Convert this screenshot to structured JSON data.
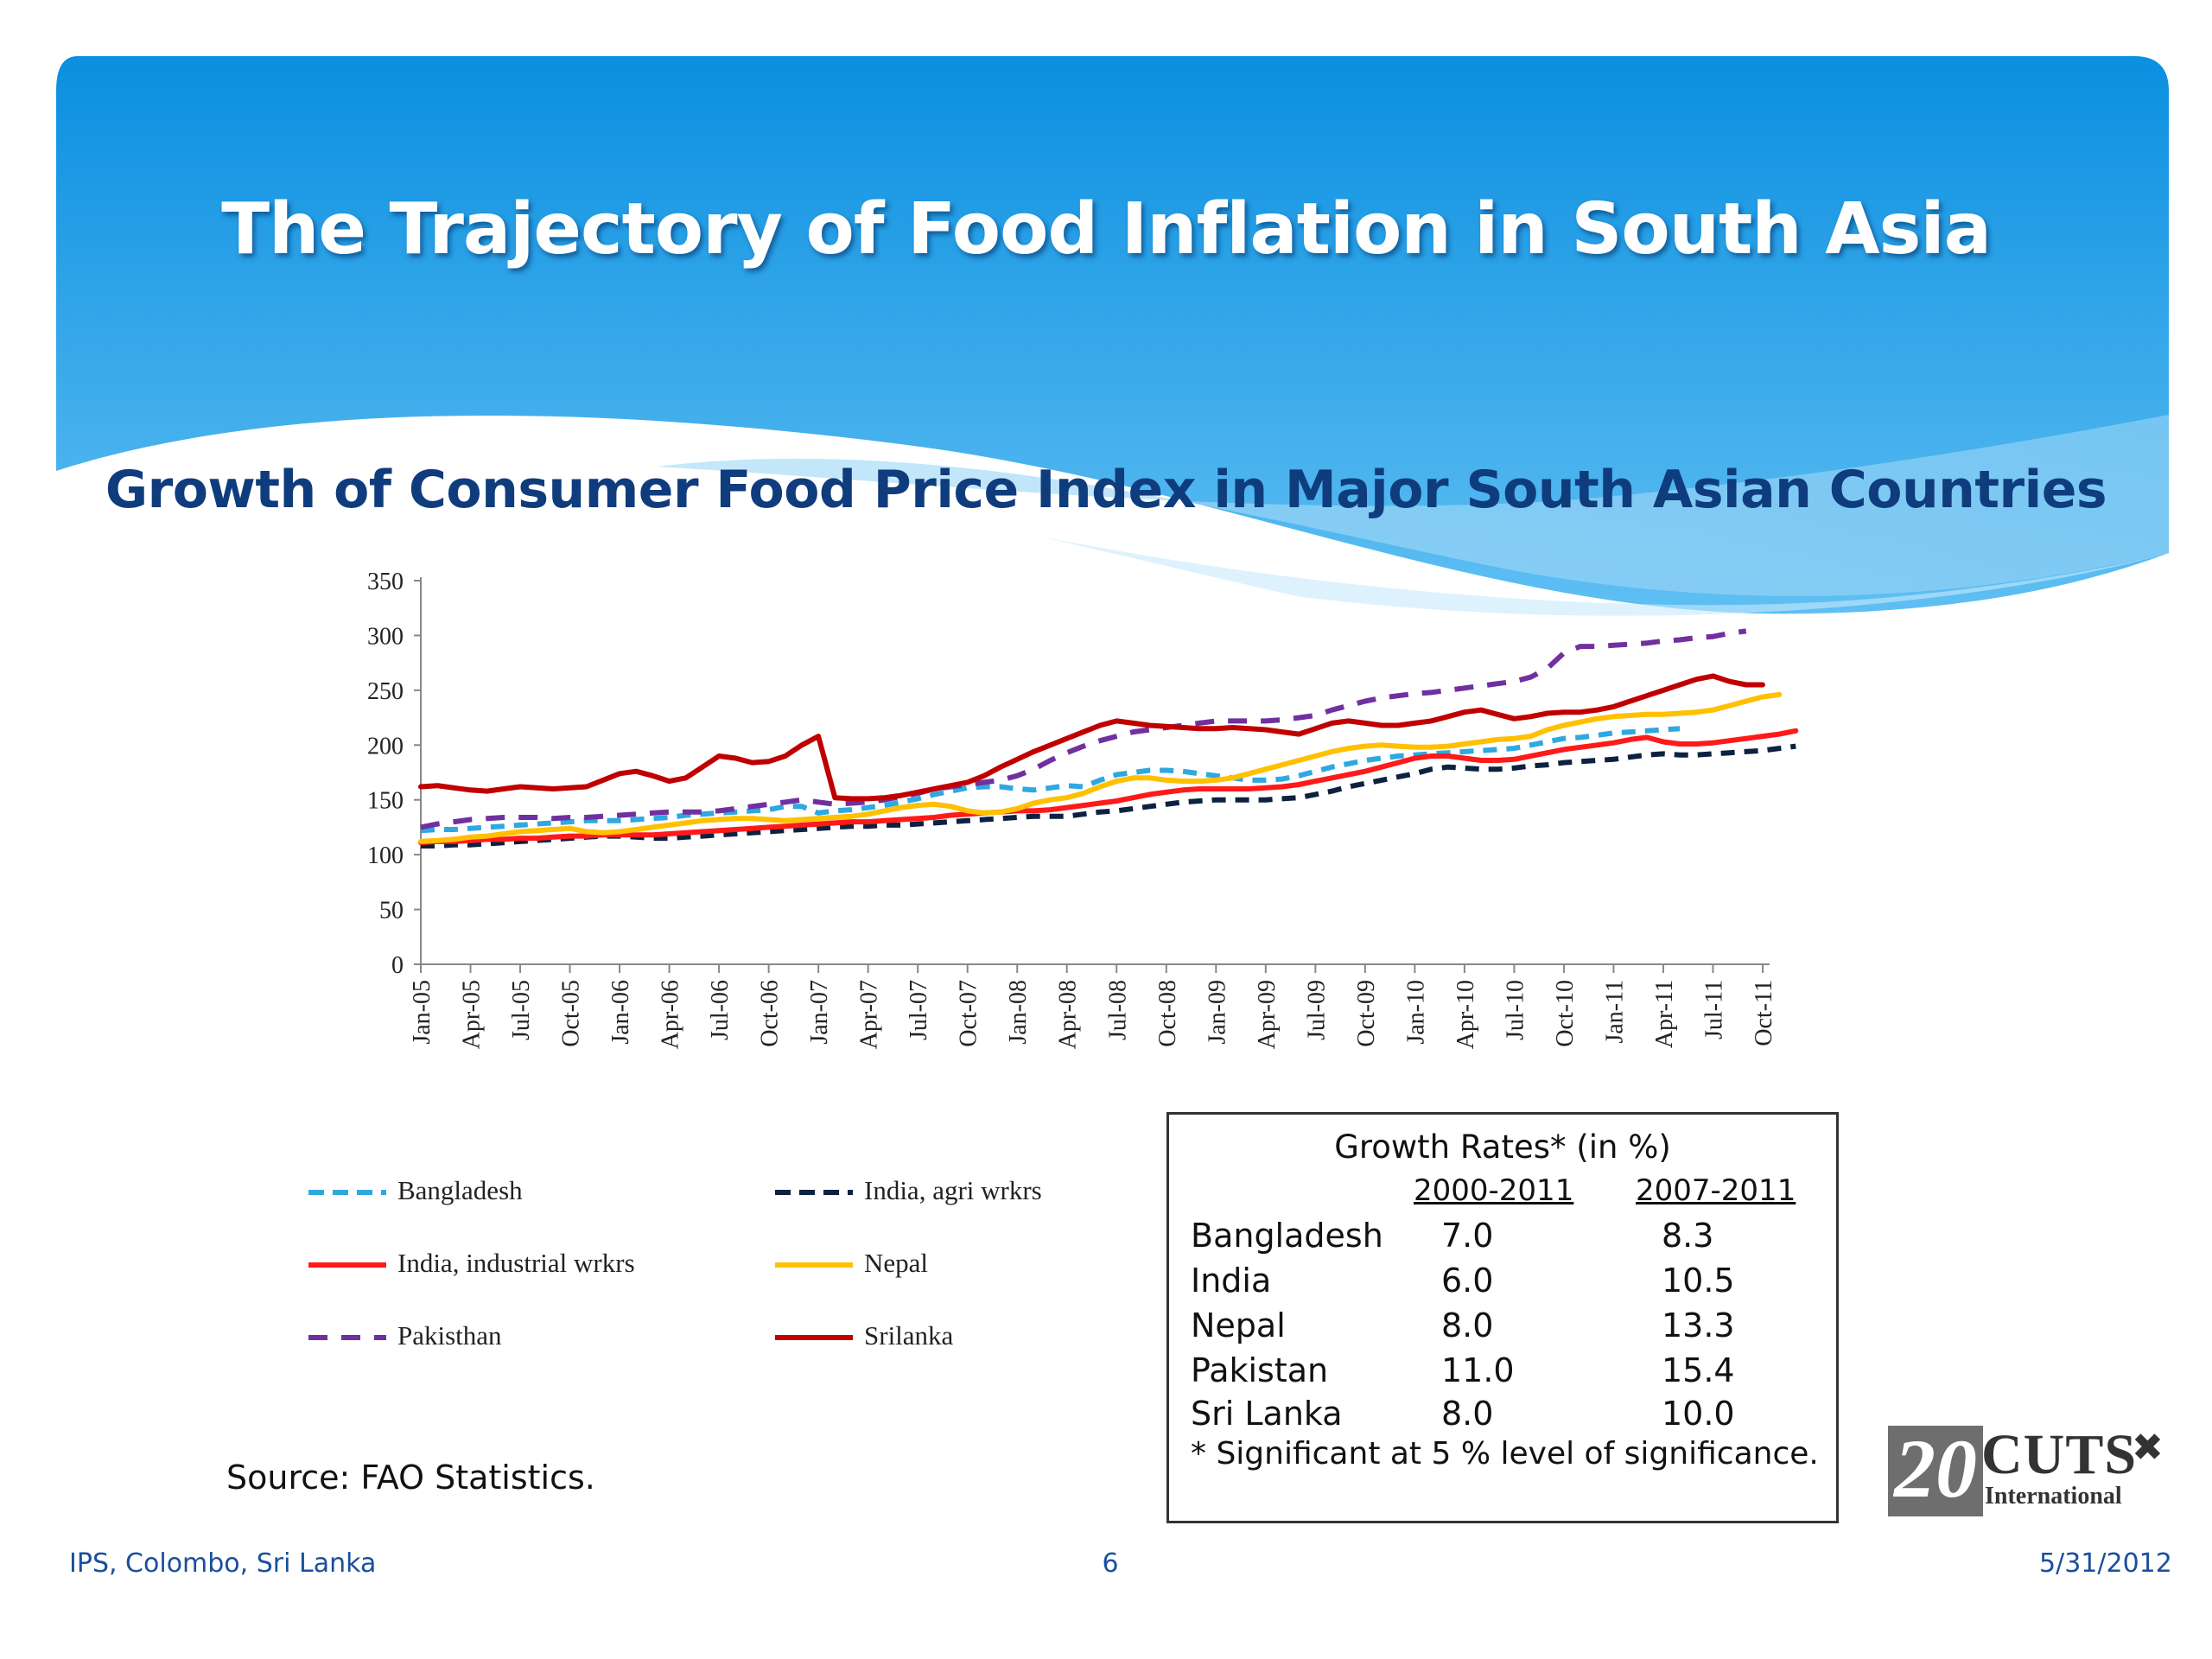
{
  "slide": {
    "title": "The Trajectory of Food Inflation in South Asia"
  },
  "chart_data": {
    "type": "line",
    "title": "Growth of Consumer Food Price Index in Major South Asian Countries",
    "ylim": [
      0,
      350
    ],
    "yticks": [
      "350",
      "300",
      "250",
      "200",
      "150",
      "100",
      "50",
      "0"
    ],
    "x_tick_labels": [
      "Jan-05",
      "Apr-05",
      "Jul-05",
      "Oct-05",
      "Jan-06",
      "Apr-06",
      "Jul-06",
      "Oct-06",
      "Jan-07",
      "Apr-07",
      "Jul-07",
      "Oct-07",
      "Jan-08",
      "Apr-08",
      "Jul-08",
      "Oct-08",
      "Jan-09",
      "Apr-09",
      "Jul-09",
      "Oct-09",
      "Jan-10",
      "Apr-10",
      "Jul-10",
      "Oct-10",
      "Jan-11",
      "Apr-11",
      "Jul-11",
      "Oct-11"
    ],
    "x_range": [
      "Jan-05",
      "Oct-11"
    ],
    "grid": false,
    "legend_position": "bottom-left",
    "series": [
      {
        "name": "Bangladesh",
        "color": "#2ea8e0",
        "dash": "dashed",
        "values": [
          122,
          123,
          123,
          124,
          125,
          126,
          127,
          128,
          129,
          130,
          131,
          131,
          131,
          132,
          133,
          134,
          136,
          137,
          138,
          139,
          140,
          141,
          144,
          144,
          138,
          140,
          141,
          143,
          145,
          148,
          151,
          155,
          158,
          161,
          162,
          162,
          160,
          159,
          161,
          163,
          162,
          168,
          173,
          175,
          177,
          177,
          176,
          174,
          172,
          170,
          168,
          168,
          169,
          172,
          176,
          180,
          183,
          186,
          188,
          190,
          191,
          192,
          193,
          194,
          195,
          196,
          197,
          200,
          203,
          206,
          207,
          209,
          211,
          212,
          213,
          214,
          215
        ]
      },
      {
        "name": "India, agri wrkrs",
        "color": "#0d2140",
        "dash": "dashed",
        "values": [
          108,
          108,
          109,
          109,
          110,
          111,
          112,
          113,
          114,
          115,
          116,
          117,
          117,
          116,
          115,
          115,
          116,
          117,
          118,
          119,
          120,
          121,
          122,
          123,
          124,
          125,
          126,
          126,
          127,
          127,
          128,
          129,
          130,
          131,
          132,
          133,
          134,
          135,
          135,
          135,
          137,
          139,
          140,
          142,
          144,
          146,
          148,
          149,
          150,
          150,
          150,
          150,
          151,
          152,
          155,
          158,
          162,
          165,
          168,
          171,
          174,
          178,
          180,
          179,
          178,
          178,
          179,
          181,
          182,
          184,
          185,
          186,
          187,
          189,
          191,
          192,
          191,
          191,
          192,
          193,
          194,
          195,
          197,
          199
        ]
      },
      {
        "name": "India, industrial wrkrs",
        "color": "#ff1a1a",
        "dash": "solid",
        "values": [
          111,
          112,
          112,
          113,
          114,
          114,
          115,
          115,
          116,
          117,
          117,
          118,
          118,
          118,
          118,
          119,
          120,
          121,
          122,
          123,
          124,
          125,
          126,
          127,
          128,
          129,
          130,
          130,
          131,
          132,
          133,
          134,
          136,
          137,
          138,
          139,
          140,
          140,
          141,
          143,
          145,
          147,
          149,
          152,
          155,
          157,
          159,
          160,
          160,
          160,
          160,
          161,
          162,
          164,
          167,
          170,
          173,
          176,
          180,
          184,
          188,
          190,
          190,
          188,
          186,
          186,
          187,
          190,
          193,
          196,
          198,
          200,
          202,
          205,
          207,
          203,
          201,
          201,
          202,
          204,
          206,
          208,
          210,
          213
        ]
      },
      {
        "name": "Nepal",
        "color": "#ffc000",
        "dash": "solid",
        "values": [
          112,
          113,
          114,
          116,
          117,
          119,
          121,
          122,
          123,
          124,
          121,
          120,
          121,
          123,
          125,
          127,
          129,
          131,
          132,
          133,
          133,
          132,
          131,
          132,
          133,
          134,
          135,
          137,
          140,
          143,
          145,
          146,
          144,
          140,
          138,
          139,
          142,
          147,
          150,
          152,
          156,
          162,
          167,
          170,
          170,
          168,
          167,
          167,
          168,
          170,
          174,
          178,
          182,
          186,
          190,
          194,
          197,
          199,
          200,
          199,
          198,
          198,
          199,
          201,
          203,
          205,
          206,
          208,
          214,
          218,
          221,
          224,
          226,
          227,
          228,
          228,
          229,
          230,
          232,
          236,
          240,
          244,
          246
        ]
      },
      {
        "name": "Pakisthan",
        "color": "#7030a0",
        "dash": "dashed",
        "values": [
          125,
          128,
          130,
          132,
          133,
          134,
          134,
          134,
          133,
          134,
          134,
          135,
          136,
          137,
          138,
          139,
          139,
          139,
          140,
          142,
          144,
          146,
          148,
          150,
          148,
          146,
          147,
          148,
          150,
          153,
          156,
          160,
          162,
          164,
          166,
          168,
          172,
          178,
          186,
          193,
          199,
          204,
          208,
          212,
          214,
          216,
          218,
          220,
          222,
          222,
          222,
          222,
          223,
          225,
          227,
          232,
          236,
          240,
          243,
          245,
          247,
          248,
          250,
          252,
          254,
          256,
          258,
          262,
          270,
          284,
          290,
          290,
          291,
          292,
          293,
          295,
          296,
          298,
          299,
          302,
          304
        ]
      },
      {
        "name": "Srilanka",
        "color": "#c00000",
        "dash": "solid",
        "values": [
          162,
          163,
          161,
          159,
          158,
          160,
          162,
          161,
          160,
          161,
          162,
          168,
          174,
          176,
          172,
          167,
          170,
          180,
          190,
          188,
          184,
          185,
          190,
          200,
          208,
          152,
          151,
          151,
          152,
          154,
          157,
          160,
          163,
          166,
          172,
          180,
          187,
          194,
          200,
          206,
          212,
          218,
          222,
          220,
          218,
          217,
          216,
          215,
          215,
          216,
          215,
          214,
          212,
          210,
          215,
          220,
          222,
          220,
          218,
          218,
          220,
          222,
          226,
          230,
          232,
          228,
          224,
          226,
          229,
          230,
          230,
          232,
          235,
          240,
          245,
          250,
          255,
          260,
          263,
          258,
          255,
          255
        ]
      }
    ]
  },
  "legend": {
    "items": [
      "Bangladesh",
      "India, agri wrkrs",
      "India, industrial wrkrs",
      "Nepal",
      "Pakisthan",
      "Srilanka"
    ]
  },
  "growth_table": {
    "title": "Growth Rates* (in %)",
    "columns": [
      "2000-2011",
      "2007-2011"
    ],
    "rows": [
      {
        "country": "Bangladesh",
        "v1": "7.0",
        "v2": "8.3"
      },
      {
        "country": "India",
        "v1": "6.0",
        "v2": "10.5"
      },
      {
        "country": "Nepal",
        "v1": "8.0",
        "v2": "13.3"
      },
      {
        "country": "Pakistan",
        "v1": "11.0",
        "v2": "15.4"
      },
      {
        "country": "Sri Lanka",
        "v1": "8.0",
        "v2": "10.0"
      }
    ],
    "note": "* Significant at 5 % level of significance."
  },
  "source": "Source: FAO Statistics.",
  "footer": {
    "left": "IPS, Colombo, Sri Lanka",
    "center": "6",
    "right": "5/31/2012"
  },
  "logo": {
    "number": "20",
    "name": "CUTS",
    "sub": "International",
    "icon": "cuts-logo-icon"
  }
}
